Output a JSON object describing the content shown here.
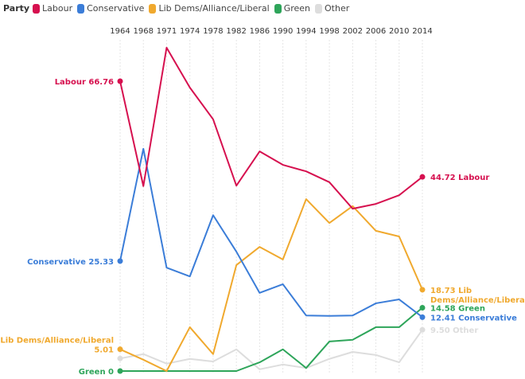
{
  "legend": {
    "title": "Party"
  },
  "chart_data": {
    "type": "line",
    "x": [
      "1964",
      "1968",
      "1971",
      "1974",
      "1978",
      "1982",
      "1986",
      "1990",
      "1994",
      "1998",
      "2002",
      "2006",
      "2010",
      "2014"
    ],
    "ylim": [
      0,
      80
    ],
    "grid": "vertical",
    "legend_position": "top-left",
    "series": [
      {
        "name": "Labour",
        "color": "#d6104f",
        "values": [
          66.76,
          42.6,
          74.5,
          65.3,
          58.0,
          42.7,
          50.6,
          47.5,
          46.0,
          43.5,
          37.4,
          38.5,
          40.5,
          44.72
        ],
        "start_label": [
          "Labour 66.76"
        ],
        "end_label": [
          "44.72 Labour"
        ]
      },
      {
        "name": "Conservative",
        "color": "#3b7dd8",
        "values": [
          25.33,
          51.2,
          23.8,
          21.8,
          35.9,
          27.5,
          18.0,
          20.0,
          12.8,
          12.7,
          12.8,
          15.6,
          16.5,
          12.41
        ],
        "start_label": [
          "Conservative 25.33"
        ],
        "end_label": [
          "12.41 Conservative"
        ]
      },
      {
        "name": "Lib Dems/Alliance/Liberal",
        "color": "#f0a92e",
        "values": [
          5.01,
          2.6,
          0,
          10.1,
          3.9,
          24.4,
          28.6,
          25.7,
          39.6,
          34.1,
          38.0,
          32.3,
          31.0,
          18.73
        ],
        "start_label": [
          "Lib Dems/Alliance/Liberal",
          "5.01"
        ],
        "end_label": [
          "18.73 Lib",
          "Dems/Alliance/Liberal"
        ]
      },
      {
        "name": "Green",
        "color": "#2ea55a",
        "values": [
          0,
          0,
          0,
          0,
          0,
          0,
          2.0,
          5.0,
          0.7,
          6.8,
          7.2,
          10.1,
          10.1,
          14.58
        ],
        "start_label": [
          "Green 0"
        ],
        "end_label": [
          "14.58 Green"
        ]
      },
      {
        "name": "Other",
        "color": "#dddddd",
        "values": [
          2.9,
          3.9,
          1.7,
          2.8,
          2.2,
          5.0,
          0.4,
          1.5,
          0.7,
          2.8,
          4.4,
          3.7,
          2.0,
          9.5
        ],
        "start_label": [],
        "end_label": [
          "9.50 Other"
        ]
      }
    ]
  }
}
